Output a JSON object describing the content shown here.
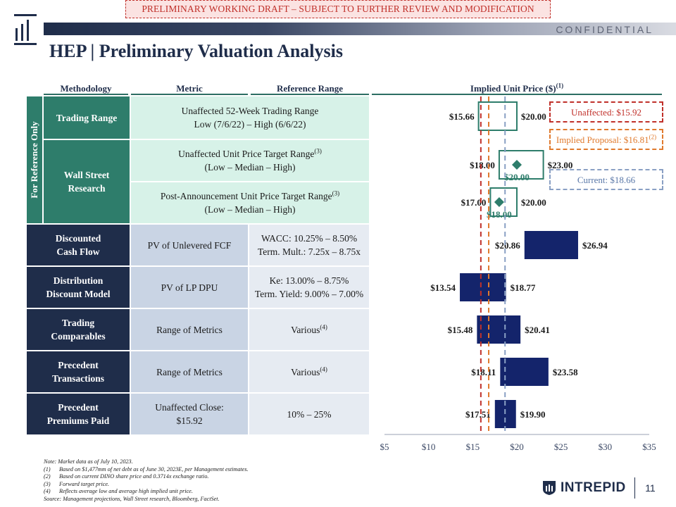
{
  "banner": "PRELIMINARY WORKING DRAFT – SUBJECT TO FURTHER REVIEW AND MODIFICATION",
  "confidential": "CONFIDENTIAL",
  "title": "HEP | Preliminary Valuation Analysis",
  "columns": {
    "methodology": "Methodology",
    "metric": "Metric",
    "reference": "Reference Range",
    "implied": "Implied Unit Price ($)",
    "implied_sup": "(1)"
  },
  "side_tab": "For Reference Only",
  "rows": {
    "trading_range": {
      "method": "Trading Range",
      "metric_l1": "Unaffected 52-Week Trading Range",
      "metric_l2": "Low (7/6/22) – High (6/6/22)"
    },
    "wall_street": {
      "method_l1": "Wall Street",
      "method_l2": "Research",
      "metric1_l1": "Unaffected Unit Price Target Range",
      "metric1_sup": "(3)",
      "metric1_l2": "(Low – Median – High)",
      "metric2_l1": "Post-Announcement Unit Price Target Range",
      "metric2_sup": "(3)",
      "metric2_l2": "(Low – Median – High)"
    },
    "dcf": {
      "method_l1": "Discounted",
      "method_l2": "Cash Flow",
      "metric": "PV of Unlevered FCF",
      "ref_l1": "WACC: 10.25% – 8.50%",
      "ref_l2": "Term. Mult.: 7.25x – 8.75x"
    },
    "ddm": {
      "method_l1": "Distribution",
      "method_l2": "Discount Model",
      "metric": "PV of LP DPU",
      "ref_l1": "Ke: 13.00% – 8.75%",
      "ref_l2": "Term. Yield: 9.00% – 7.00%"
    },
    "comps": {
      "method_l1": "Trading",
      "method_l2": "Comparables",
      "metric": "Range of Metrics",
      "ref": "Various",
      "ref_sup": "(4)"
    },
    "precedents": {
      "method_l1": "Precedent",
      "method_l2": "Transactions",
      "metric": "Range of Metrics",
      "ref": "Various",
      "ref_sup": "(4)"
    },
    "premiums": {
      "method_l1": "Precedent",
      "method_l2": "Premiums Paid",
      "metric_l1": "Unaffected Close:",
      "metric_l2": "$15.92",
      "ref": "10% – 25%"
    }
  },
  "legend": {
    "unaffected": "Unaffected: $15.92",
    "implied": "Implied Proposal: $16.81",
    "implied_sup": "(2)",
    "current": "Current: $18.66"
  },
  "chart_data": {
    "type": "bar",
    "orientation": "horizontal-range",
    "xlim": [
      5,
      35
    ],
    "x_ticks": [
      "$5",
      "$10",
      "$15",
      "$20",
      "$25",
      "$30",
      "$35"
    ],
    "x_tick_values": [
      5,
      10,
      15,
      20,
      25,
      30,
      35
    ],
    "reference_lines": [
      {
        "name": "Unaffected",
        "value": 15.92,
        "color": "#c0302a"
      },
      {
        "name": "Implied Proposal",
        "value": 16.81,
        "color": "#e07a2e"
      },
      {
        "name": "Current",
        "value": 18.66,
        "color": "#8aa0c4"
      }
    ],
    "rows": [
      {
        "low": 15.66,
        "high": 20.0,
        "low_label": "$15.66",
        "high_label": "$20.00",
        "style": "outline"
      },
      {
        "low": 18.0,
        "high": 23.0,
        "median": 20.0,
        "low_label": "$18.00",
        "high_label": "$23.00",
        "median_label": "$20.00",
        "style": "outline"
      },
      {
        "low": 17.0,
        "high": 20.0,
        "median": 18.0,
        "low_label": "$17.00",
        "high_label": "$20.00",
        "median_label": "$18.00",
        "style": "outline"
      },
      {
        "low": 20.86,
        "high": 26.94,
        "low_label": "$20.86",
        "high_label": "$26.94",
        "style": "filled"
      },
      {
        "low": 13.54,
        "high": 18.77,
        "low_label": "$13.54",
        "high_label": "$18.77",
        "style": "filled"
      },
      {
        "low": 15.48,
        "high": 20.41,
        "low_label": "$15.48",
        "high_label": "$20.41",
        "style": "filled"
      },
      {
        "low": 18.11,
        "high": 23.58,
        "low_label": "$18.11",
        "high_label": "$23.58",
        "style": "filled"
      },
      {
        "low": 17.51,
        "high": 19.9,
        "low_label": "$17.51",
        "high_label": "$19.90",
        "style": "filled"
      }
    ],
    "colors": {
      "outline": "#2e7d6b",
      "filled": "#14246b",
      "median_marker": "#2e7d6b"
    }
  },
  "footnotes": {
    "note": "Note: Market data as of July 10, 2023.",
    "items": [
      {
        "num": "(1)",
        "text": "Based on $1,477mm of net debt as of June 30, 2023E, per Management estimates."
      },
      {
        "num": "(2)",
        "text": "Based on current DINO share price and 0.3714x exchange ratio."
      },
      {
        "num": "(3)",
        "text": "Forward target price."
      },
      {
        "num": "(4)",
        "text": "Reflects average low and average high implied unit price."
      }
    ],
    "source": "Source: Management projections, Wall Street research, Bloomberg, FactSet."
  },
  "brand": {
    "name": "INTREPID",
    "page": "11"
  }
}
